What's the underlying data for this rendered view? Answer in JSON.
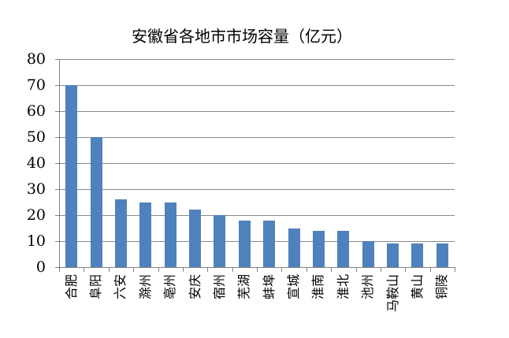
{
  "chart_data": {
    "type": "bar",
    "title": "安徽省各地市市场容量（亿元）",
    "categories": [
      "合肥",
      "阜阳",
      "六安",
      "滁州",
      "亳州",
      "安庆",
      "宿州",
      "芜湖",
      "蚌埠",
      "宣城",
      "淮南",
      "淮北",
      "池州",
      "马鞍山",
      "黄山",
      "铜陵"
    ],
    "values": [
      70,
      50,
      26,
      25,
      25,
      22,
      20,
      18,
      18,
      15,
      14,
      14,
      10,
      9,
      9,
      9
    ],
    "xlabel": "",
    "ylabel": "",
    "ylim": [
      0,
      80
    ],
    "yticks": [
      0,
      10,
      20,
      30,
      40,
      50,
      60,
      70,
      80
    ],
    "grid": true,
    "legend": false,
    "bar_color": "#4F81BD",
    "gridline_color": "#8A8A8A",
    "axis_color": "#808080",
    "text_color": "#000000",
    "background_color": "#FFFFFF"
  }
}
